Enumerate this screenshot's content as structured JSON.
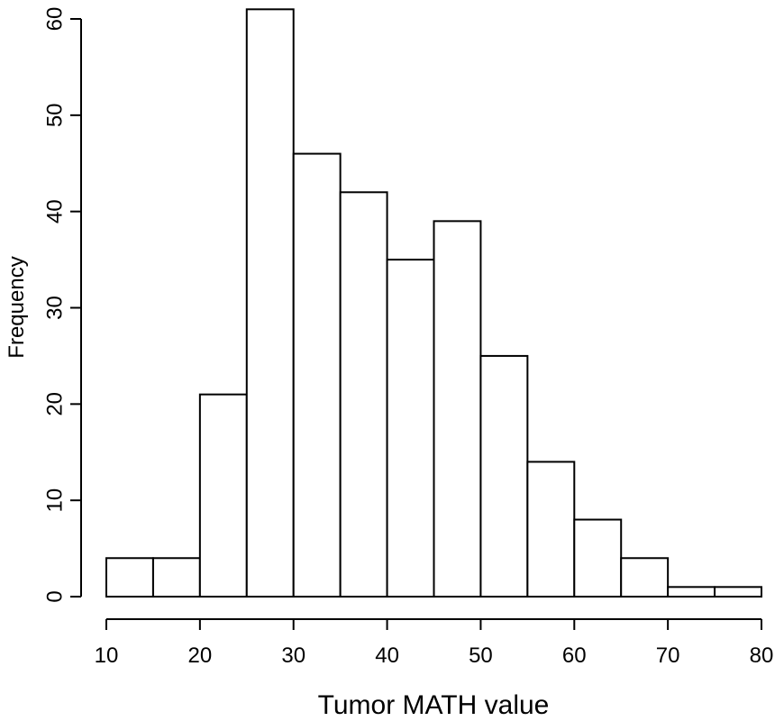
{
  "chart_data": {
    "type": "bar",
    "subtype": "histogram",
    "title": "",
    "xlabel": "Tumor MATH value",
    "ylabel": "Frequency",
    "bins": [
      {
        "start": 10,
        "end": 15,
        "count": 4
      },
      {
        "start": 15,
        "end": 20,
        "count": 4
      },
      {
        "start": 20,
        "end": 25,
        "count": 21
      },
      {
        "start": 25,
        "end": 30,
        "count": 61
      },
      {
        "start": 30,
        "end": 35,
        "count": 46
      },
      {
        "start": 35,
        "end": 40,
        "count": 42
      },
      {
        "start": 40,
        "end": 45,
        "count": 35
      },
      {
        "start": 45,
        "end": 50,
        "count": 39
      },
      {
        "start": 50,
        "end": 55,
        "count": 25
      },
      {
        "start": 55,
        "end": 60,
        "count": 14
      },
      {
        "start": 60,
        "end": 65,
        "count": 8
      },
      {
        "start": 65,
        "end": 70,
        "count": 4
      },
      {
        "start": 70,
        "end": 75,
        "count": 1
      },
      {
        "start": 75,
        "end": 80,
        "count": 1
      }
    ],
    "xlim": [
      10,
      80
    ],
    "ylim": [
      0,
      60
    ],
    "x_ticks": [
      10,
      20,
      30,
      40,
      50,
      60,
      70,
      80
    ],
    "y_ticks": [
      0,
      10,
      20,
      30,
      40,
      50,
      60
    ],
    "grid": false,
    "legend": "none",
    "bar_fill": "#ffffff",
    "bar_stroke": "#000000"
  }
}
